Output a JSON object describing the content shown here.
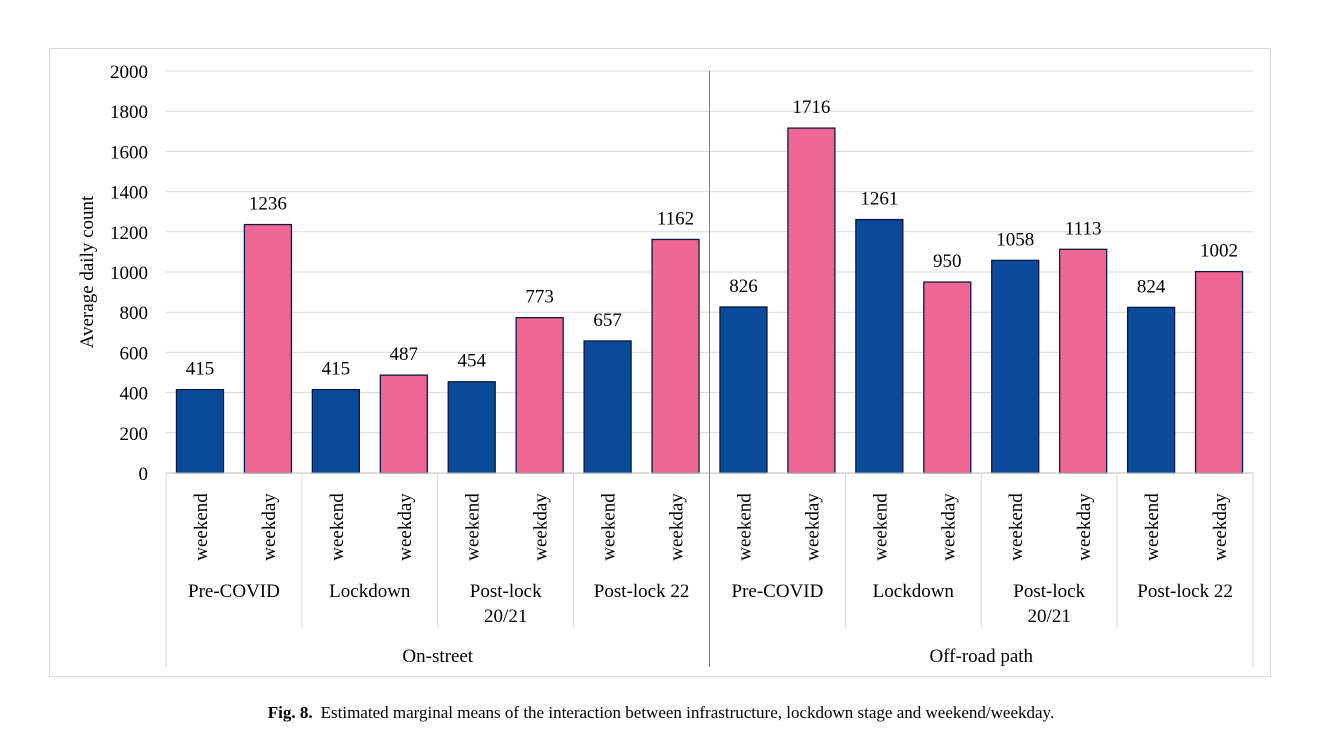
{
  "chart_data": {
    "type": "bar",
    "ylabel": "Average daily count",
    "ylim": [
      0,
      2000
    ],
    "yticks": [
      0,
      200,
      400,
      600,
      800,
      1000,
      1200,
      1400,
      1600,
      1800,
      2000
    ],
    "grid": true,
    "colors": {
      "weekend": "#0a4a9a",
      "weekday": "#f06695"
    },
    "bars": [
      {
        "infrastructure": "On-street",
        "stage": "Pre-COVID",
        "day": "weekend",
        "value": 415
      },
      {
        "infrastructure": "On-street",
        "stage": "Pre-COVID",
        "day": "weekday",
        "value": 1236
      },
      {
        "infrastructure": "On-street",
        "stage": "Lockdown",
        "day": "weekend",
        "value": 415
      },
      {
        "infrastructure": "On-street",
        "stage": "Lockdown",
        "day": "weekday",
        "value": 487
      },
      {
        "infrastructure": "On-street",
        "stage": "Post-lock 20/21",
        "day": "weekend",
        "value": 454
      },
      {
        "infrastructure": "On-street",
        "stage": "Post-lock 20/21",
        "day": "weekday",
        "value": 773
      },
      {
        "infrastructure": "On-street",
        "stage": "Post-lock 22",
        "day": "weekend",
        "value": 657
      },
      {
        "infrastructure": "On-street",
        "stage": "Post-lock 22",
        "day": "weekday",
        "value": 1162
      },
      {
        "infrastructure": "Off-road path",
        "stage": "Pre-COVID",
        "day": "weekend",
        "value": 826
      },
      {
        "infrastructure": "Off-road path",
        "stage": "Pre-COVID",
        "day": "weekday",
        "value": 1716
      },
      {
        "infrastructure": "Off-road path",
        "stage": "Lockdown",
        "day": "weekend",
        "value": 1261
      },
      {
        "infrastructure": "Off-road path",
        "stage": "Lockdown",
        "day": "weekday",
        "value": 950
      },
      {
        "infrastructure": "Off-road path",
        "stage": "Post-lock 20/21",
        "day": "weekend",
        "value": 1058
      },
      {
        "infrastructure": "Off-road path",
        "stage": "Post-lock 20/21",
        "day": "weekday",
        "value": 1113
      },
      {
        "infrastructure": "Off-road path",
        "stage": "Post-lock 22",
        "day": "weekend",
        "value": 824
      },
      {
        "infrastructure": "Off-road path",
        "stage": "Post-lock 22",
        "day": "weekday",
        "value": 1002
      }
    ],
    "groups": [
      "Pre-COVID",
      "Lockdown",
      "Post-lock 20/21",
      "Post-lock 22",
      "Pre-COVID",
      "Lockdown",
      "Post-lock 20/21",
      "Post-lock 22"
    ],
    "infrastructures": [
      "On-street",
      "Off-road path"
    ]
  },
  "caption": {
    "label": "Fig. 8.",
    "text": "Estimated marginal means of the interaction between infrastructure, lockdown stage and weekend/weekday."
  }
}
